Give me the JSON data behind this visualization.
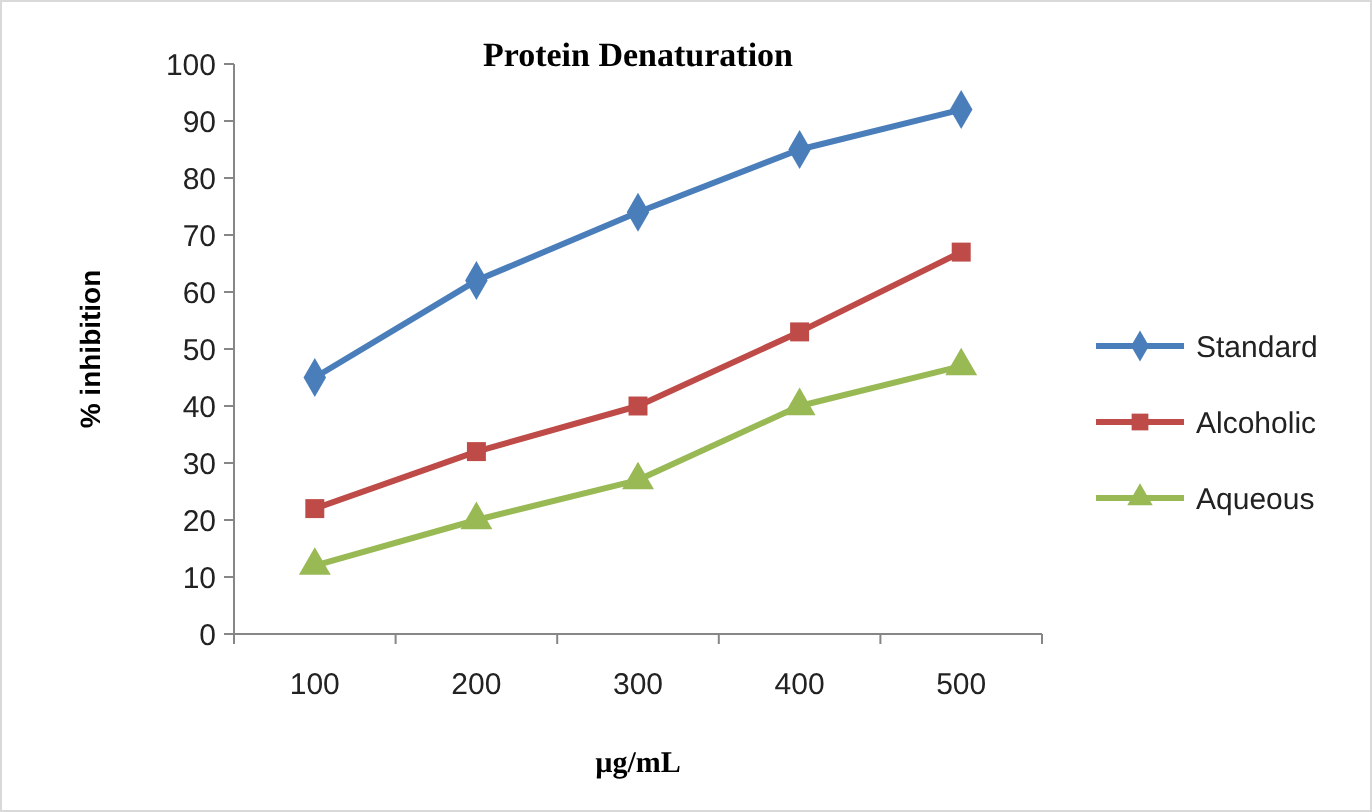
{
  "chart_data": {
    "type": "line",
    "title": "Protein Denaturation",
    "xlabel": "µg/mL",
    "ylabel": "% inhibition",
    "categories": [
      "100",
      "200",
      "300",
      "400",
      "500"
    ],
    "ylim": [
      0,
      100
    ],
    "yticks": [
      0,
      10,
      20,
      30,
      40,
      50,
      60,
      70,
      80,
      90,
      100
    ],
    "grid": false,
    "legend": "right",
    "line_style": "solid",
    "series": [
      {
        "name": "Standard",
        "color": "#4a7ebb",
        "marker": "diamond",
        "values": [
          45,
          62,
          74,
          85,
          92
        ]
      },
      {
        "name": "Alcoholic",
        "color": "#be4b48",
        "marker": "square",
        "values": [
          22,
          32,
          40,
          53,
          67
        ]
      },
      {
        "name": "Aqueous",
        "color": "#98b954",
        "marker": "triangle",
        "values": [
          12,
          20,
          27,
          40,
          47
        ]
      }
    ]
  }
}
